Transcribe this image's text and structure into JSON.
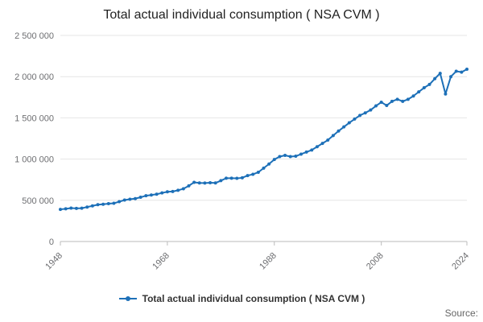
{
  "title": "Total actual individual consumption ( NSA CVM )",
  "legend": {
    "label": "Total actual individual consumption ( NSA CVM )"
  },
  "source": {
    "label": "Source:"
  },
  "colors": {
    "line": "#1d70b8",
    "grid": "#e6e6e6",
    "axis": "#bbbbbb",
    "tick_label": "#6d6e71",
    "title_text": "#222222",
    "legend_text": "#333333",
    "source_text": "#666666"
  },
  "chart_data": {
    "type": "line",
    "title": "Total actual individual consumption ( NSA CVM )",
    "xlabel": "",
    "ylabel": "",
    "xlim": [
      1948,
      2024
    ],
    "ylim": [
      0,
      2500000
    ],
    "xticks": [
      1948,
      1968,
      1988,
      2008,
      2024
    ],
    "yticks": [
      0,
      500000,
      1000000,
      1500000,
      2000000,
      2500000
    ],
    "grid": true,
    "legend_position": "bottom",
    "marker": "circle",
    "x": [
      1948,
      1949,
      1950,
      1951,
      1952,
      1953,
      1954,
      1955,
      1956,
      1957,
      1958,
      1959,
      1960,
      1961,
      1962,
      1963,
      1964,
      1965,
      1966,
      1967,
      1968,
      1969,
      1970,
      1971,
      1972,
      1973,
      1974,
      1975,
      1976,
      1977,
      1978,
      1979,
      1980,
      1981,
      1982,
      1983,
      1984,
      1985,
      1986,
      1987,
      1988,
      1989,
      1990,
      1991,
      1992,
      1993,
      1994,
      1995,
      1996,
      1997,
      1998,
      1999,
      2000,
      2001,
      2002,
      2003,
      2004,
      2005,
      2006,
      2007,
      2008,
      2009,
      2010,
      2011,
      2012,
      2013,
      2014,
      2015,
      2016,
      2017,
      2018,
      2019,
      2020,
      2021,
      2022,
      2023,
      2024
    ],
    "values": [
      390000,
      397000,
      405000,
      402000,
      404000,
      418000,
      432000,
      447000,
      452000,
      459000,
      464000,
      483000,
      503000,
      513000,
      520000,
      537000,
      555000,
      564000,
      574000,
      589000,
      603000,
      607000,
      621000,
      640000,
      675000,
      718000,
      710000,
      709000,
      713000,
      710000,
      738000,
      768000,
      768000,
      766000,
      773000,
      800000,
      815000,
      840000,
      890000,
      940000,
      995000,
      1030000,
      1045000,
      1030000,
      1035000,
      1060000,
      1085000,
      1110000,
      1150000,
      1190000,
      1230000,
      1285000,
      1340000,
      1390000,
      1440000,
      1485000,
      1530000,
      1560000,
      1595000,
      1645000,
      1690000,
      1650000,
      1700000,
      1725000,
      1700000,
      1725000,
      1765000,
      1815000,
      1865000,
      1905000,
      1975000,
      2040000,
      1790000,
      2000000,
      2065000,
      2055000,
      2090000
    ]
  }
}
